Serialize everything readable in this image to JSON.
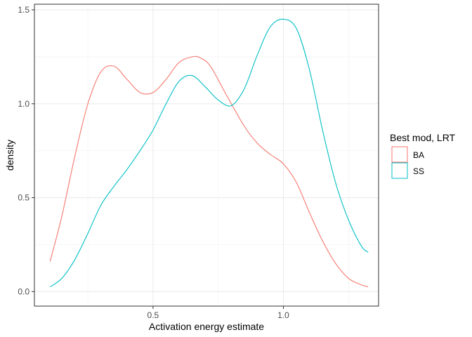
{
  "chart_data": {
    "type": "line",
    "title": "",
    "xlabel": "Activation energy estimate",
    "ylabel": "density",
    "xlim": [
      0.045,
      1.365
    ],
    "ylim": [
      -0.0775,
      1.53
    ],
    "xticks": [
      0.5,
      1.0
    ],
    "xtick_labels": [
      "0.5",
      "1.0"
    ],
    "yticks": [
      0.0,
      0.5,
      1.0,
      1.5
    ],
    "ytick_labels": [
      "0.0",
      "0.5",
      "1.0",
      "1.5"
    ],
    "grid": true,
    "legend": {
      "title": "Best mod, LRT",
      "placement": "right"
    },
    "series": [
      {
        "name": "BA",
        "color": "#F8766D",
        "x": [
          0.105,
          0.15,
          0.2,
          0.25,
          0.3,
          0.35,
          0.4,
          0.45,
          0.5,
          0.55,
          0.6,
          0.65,
          0.68,
          0.72,
          0.78,
          0.85,
          0.9,
          0.95,
          1.0,
          1.05,
          1.1,
          1.15,
          1.2,
          1.25,
          1.3,
          1.325
        ],
        "y": [
          0.16,
          0.4,
          0.72,
          1.0,
          1.17,
          1.2,
          1.13,
          1.06,
          1.06,
          1.13,
          1.22,
          1.25,
          1.245,
          1.2,
          1.05,
          0.88,
          0.79,
          0.73,
          0.68,
          0.58,
          0.42,
          0.27,
          0.15,
          0.07,
          0.035,
          0.025
        ]
      },
      {
        "name": "SS",
        "color": "#00BFC4",
        "x": [
          0.105,
          0.15,
          0.2,
          0.25,
          0.3,
          0.35,
          0.4,
          0.45,
          0.5,
          0.55,
          0.6,
          0.65,
          0.7,
          0.75,
          0.8,
          0.85,
          0.9,
          0.95,
          1.0,
          1.05,
          1.1,
          1.15,
          1.2,
          1.25,
          1.3,
          1.325
        ],
        "y": [
          0.025,
          0.07,
          0.17,
          0.31,
          0.46,
          0.56,
          0.65,
          0.75,
          0.86,
          1.0,
          1.12,
          1.15,
          1.09,
          1.02,
          0.99,
          1.08,
          1.26,
          1.41,
          1.45,
          1.4,
          1.18,
          0.86,
          0.58,
          0.38,
          0.24,
          0.21
        ]
      }
    ]
  }
}
